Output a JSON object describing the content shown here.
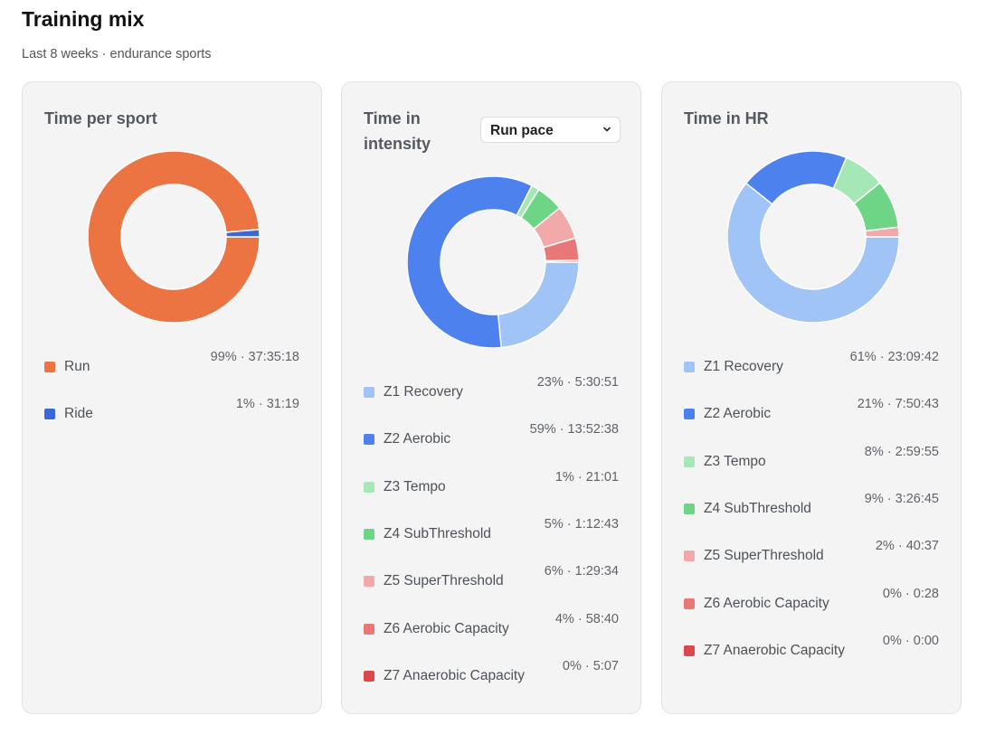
{
  "header": {
    "title": "Training mix",
    "subtitle": "Last 8 weeks · endurance sports"
  },
  "cards": [
    {
      "title": "Time per sport",
      "legend": [
        {
          "label": "Run",
          "value": "99% · 37:35:18",
          "color": "#ec7442"
        },
        {
          "label": "Ride",
          "value": "1% · 31:19",
          "color": "#3b68d9"
        }
      ]
    },
    {
      "title": "Time in intensity",
      "select": {
        "value": "Run pace"
      },
      "legend": [
        {
          "label": "Z1 Recovery",
          "value": "23% · 5:30:51",
          "color": "#9fc4f5"
        },
        {
          "label": "Z2 Aerobic",
          "value": "59% · 13:52:38",
          "color": "#4d82ee"
        },
        {
          "label": "Z3 Tempo",
          "value": "1% · 21:01",
          "color": "#a6e8b5"
        },
        {
          "label": "Z4 SubThreshold",
          "value": "5% · 1:12:43",
          "color": "#6fd586"
        },
        {
          "label": "Z5 SuperThreshold",
          "value": "6% · 1:29:34",
          "color": "#f1a9a9"
        },
        {
          "label": "Z6 Aerobic Capacity",
          "value": "4% · 58:40",
          "color": "#e87878"
        },
        {
          "label": "Z7 Anaerobic Capacity",
          "value": "0% · 5:07",
          "color": "#dc4949"
        }
      ]
    },
    {
      "title": "Time in HR",
      "legend": [
        {
          "label": "Z1 Recovery",
          "value": "61% · 23:09:42",
          "color": "#9fc4f5"
        },
        {
          "label": "Z2 Aerobic",
          "value": "21% · 7:50:43",
          "color": "#4d82ee"
        },
        {
          "label": "Z3 Tempo",
          "value": "8% · 2:59:55",
          "color": "#a6e8b5"
        },
        {
          "label": "Z4 SubThreshold",
          "value": "9% · 3:26:45",
          "color": "#6fd586"
        },
        {
          "label": "Z5 SuperThreshold",
          "value": "2% · 40:37",
          "color": "#f1a9a9"
        },
        {
          "label": "Z6 Aerobic Capacity",
          "value": "0% · 0:28",
          "color": "#e87878"
        },
        {
          "label": "Z7 Anaerobic Capacity",
          "value": "0% · 0:00",
          "color": "#dc4949"
        }
      ]
    }
  ],
  "chart_data": [
    {
      "type": "pie",
      "title": "Time per sport",
      "categories": [
        "Run",
        "Ride"
      ],
      "values": [
        135318,
        1879
      ]
    },
    {
      "type": "pie",
      "title": "Time in intensity",
      "categories": [
        "Z1 Recovery",
        "Z2 Aerobic",
        "Z3 Tempo",
        "Z4 SubThreshold",
        "Z5 SuperThreshold",
        "Z6 Aerobic Capacity",
        "Z7 Anaerobic Capacity"
      ],
      "values": [
        19851,
        49958,
        1261,
        4363,
        5374,
        3520,
        307
      ]
    },
    {
      "type": "pie",
      "title": "Time in HR",
      "categories": [
        "Z1 Recovery",
        "Z2 Aerobic",
        "Z3 Tempo",
        "Z4 SubThreshold",
        "Z5 SuperThreshold",
        "Z6 Aerobic Capacity",
        "Z7 Anaerobic Capacity"
      ],
      "values": [
        83382,
        28243,
        10795,
        12405,
        2437,
        28,
        0
      ]
    }
  ]
}
